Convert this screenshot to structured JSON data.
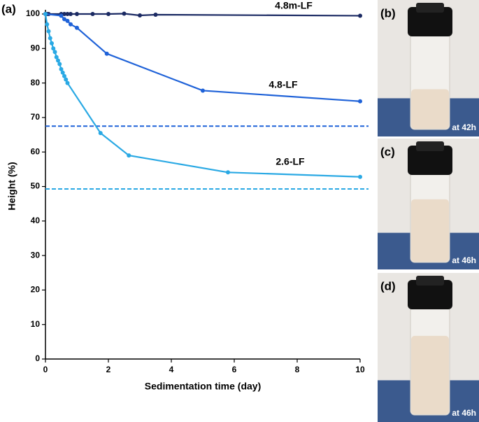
{
  "chart_data": {
    "type": "line",
    "panel_label": "(a)",
    "xlabel": "Sedimentation time (day)",
    "ylabel": "Height (%)",
    "xlim": [
      0,
      10
    ],
    "xticks": [
      0,
      2,
      4,
      6,
      8,
      10
    ],
    "ylim": [
      0,
      100
    ],
    "yticks": [
      0,
      10,
      20,
      30,
      40,
      50,
      60,
      70,
      80,
      90,
      100
    ],
    "series": [
      {
        "name": "4.8m-LF",
        "color": "#1b2a63",
        "x": [
          0,
          0.05,
          0.1,
          0.5,
          0.6,
          0.7,
          0.8,
          1,
          1.5,
          2,
          2.5,
          3,
          3.5,
          10
        ],
        "values": [
          100,
          100,
          100,
          100,
          100,
          100,
          100,
          100,
          100,
          100,
          100.1,
          99.6,
          99.8,
          99.5
        ]
      },
      {
        "name": "4.8-LF",
        "color": "#1f62d8",
        "x": [
          0,
          0.5,
          0.6,
          0.7,
          0.8,
          1,
          1.95,
          5,
          10
        ],
        "values": [
          100,
          99.5,
          98.5,
          98,
          97,
          96,
          88.5,
          77.8,
          74.7
        ]
      },
      {
        "name": "2.6-LF",
        "color": "#2aa9e4",
        "x": [
          0,
          0.05,
          0.1,
          0.15,
          0.2,
          0.25,
          0.3,
          0.35,
          0.4,
          0.45,
          0.5,
          0.55,
          0.6,
          0.65,
          0.7,
          1.75,
          2.65,
          5.8,
          10
        ],
        "values": [
          100,
          97,
          95,
          93,
          91.5,
          90,
          89,
          87.5,
          86.5,
          85.5,
          84,
          83,
          82,
          81,
          80,
          65.5,
          59,
          54.1,
          52.8
        ]
      }
    ],
    "reference_lines": [
      {
        "value": 67.5,
        "color": "#1f62d8"
      },
      {
        "value": 49.3,
        "color": "#2aa9e4"
      }
    ]
  },
  "photos": [
    {
      "label": "(b)",
      "caption": "at 42h"
    },
    {
      "label": "(c)",
      "caption": "at 46h"
    },
    {
      "label": "(d)",
      "caption": "at 46h"
    }
  ]
}
